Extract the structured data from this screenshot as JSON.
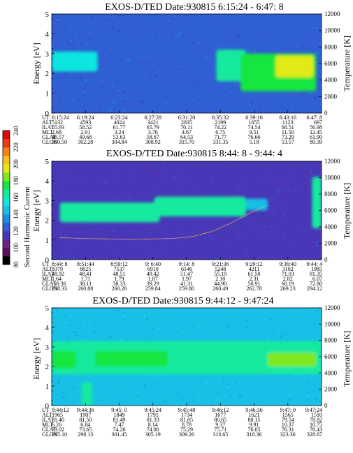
{
  "colorbar": {
    "label": "Second Harmonic Current",
    "ticks": [
      "80",
      "100",
      "120",
      "140",
      "160",
      "180",
      "200",
      "220",
      "240"
    ],
    "colors": [
      "#000000",
      "#5b0f5b",
      "#6a1f8a",
      "#4838b8",
      "#2f5fd2",
      "#1d8ee3",
      "#18bfe6",
      "#10e6e0",
      "#12ea9e",
      "#19e63f",
      "#7fe81b",
      "#e1ea17",
      "#f7c21a",
      "#f97f17",
      "#f23a12",
      "#e00a0a"
    ]
  },
  "chart_data": [
    {
      "type": "heatmap",
      "title": "EXOS-D/TED   Date:930815  6:15:24 - 6:47: 8",
      "ylabel": "Energy [eV]",
      "ylabel_right": "Temperature [K]",
      "ylim": [
        0,
        5
      ],
      "ylim_right": [
        0,
        12000
      ],
      "yticks": [
        "0",
        "1",
        "2",
        "3",
        "4",
        "5"
      ],
      "yticks_right": [
        "0",
        "2000",
        "4000",
        "6000",
        "8000",
        "10000",
        "12000"
      ],
      "row_labels": [
        "UT",
        "ALT",
        "ILAT",
        "MLT",
        "GLAT",
        "GLON"
      ],
      "columns": [
        [
          "6:15:24",
          "5132",
          "55.93",
          "2.68",
          "46.57",
          "300.50"
        ],
        [
          "6:19:24",
          "4593",
          "58.52",
          "2.91",
          "49.68",
          "302.28"
        ],
        [
          "6:23:24",
          "4024",
          "61.77",
          "3.24",
          "53.63",
          "304.84"
        ],
        [
          "6:27:28",
          "3421",
          "65.79",
          "3.76",
          "58.67",
          "308.92"
        ],
        [
          "6:31:20",
          "2835",
          "70.11",
          "4.67",
          "64.53",
          "315.70"
        ],
        [
          "6:35:32",
          "2199",
          "74.22",
          "6.75",
          "71.77",
          "331.35"
        ],
        [
          "6:39:16",
          "1655",
          "74.54",
          "9.51",
          "76.66",
          "5.18"
        ],
        [
          "6:43:16",
          "1123",
          "68.51",
          "11.50",
          "73.29",
          "53.57"
        ],
        [
          "6:47: 8",
          "697",
          "56.98",
          "12.45",
          "61.90",
          "80.39"
        ]
      ],
      "background_level": 120,
      "bands": [
        {
          "x": [
            0.0,
            0.17
          ],
          "energy": [
            2.1,
            3.1
          ],
          "level": 150
        },
        {
          "x": [
            0.61,
            0.72
          ],
          "energy": [
            1.6,
            3.2
          ],
          "level": 165
        },
        {
          "x": [
            0.7,
            0.98
          ],
          "energy": [
            1.1,
            3.0
          ],
          "level": 175
        },
        {
          "x": [
            0.83,
            0.97
          ],
          "energy": [
            1.8,
            2.9
          ],
          "level": 195
        }
      ]
    },
    {
      "type": "heatmap",
      "title": "EXOS-D/TED   Date:930815  8:44: 8 - 9:44: 4",
      "ylabel": "Energy [eV]",
      "ylabel_right": "Temperature [K]",
      "ylim": [
        0,
        5
      ],
      "ylim_right": [
        0,
        12000
      ],
      "yticks": [
        "0",
        "1",
        "2",
        "3",
        "4",
        "5"
      ],
      "yticks_right": [
        "0",
        "2000",
        "4000",
        "6000",
        "8000",
        "10000",
        "12000"
      ],
      "row_labels": [
        "UT",
        "ALT",
        "ILAT",
        "MLT",
        "GLAT",
        "GLON"
      ],
      "columns": [
        [
          "8:44: 8",
          "8379",
          "48.92",
          "1.64",
          "-56.36",
          "238.33"
        ],
        [
          "8:51:44",
          "8025",
          "48.41",
          "1.71",
          "38.11",
          "260.88"
        ],
        [
          "8:59:12",
          "7537",
          "48.51",
          "1.79",
          "38.33",
          "260.26"
        ],
        [
          "9: 6:40",
          "6910",
          "49.42",
          "1.87",
          "39.29",
          "259.84"
        ],
        [
          "9:14: 8",
          "6146",
          "51.47",
          "1.97",
          "41.31",
          "259.80"
        ],
        [
          "9:21:36",
          "5248",
          "55.19",
          "2.10",
          "44.90",
          "260.49"
        ],
        [
          "9:29:12",
          "4211",
          "61.50",
          "2.31",
          "50.91",
          "262.78"
        ],
        [
          "9:36:40",
          "3102",
          "71.03",
          "2.82",
          "60.19",
          "269.23"
        ],
        [
          "9:44: 4",
          "1985",
          "81.35",
          "6.07",
          "72.80",
          "294.12"
        ]
      ],
      "background_level": 112,
      "bands": [
        {
          "x": [
            0.03,
            0.4
          ],
          "energy": [
            1.9,
            2.9
          ],
          "level": 160
        },
        {
          "x": [
            0.38,
            0.72
          ],
          "energy": [
            2.2,
            3.2
          ],
          "level": 162
        },
        {
          "x": [
            0.72,
            0.8
          ],
          "energy": [
            2.5,
            3.1
          ],
          "level": 140
        },
        {
          "x": [
            0.965,
            1.0
          ],
          "energy": [
            1.6,
            4.2
          ],
          "level": 165
        }
      ],
      "temperature_trace_k": [
        2700,
        2600,
        2550,
        2500,
        2480,
        2520,
        2600,
        2800,
        3400,
        4400,
        5600,
        6700
      ]
    },
    {
      "type": "heatmap",
      "title": "EXOS-D/TED   Date:930815  9:44:12 - 9:47:24",
      "ylabel": "Energy [eV]",
      "ylabel_right": "Temperature [K]",
      "ylim": [
        0,
        5
      ],
      "ylim_right": [
        0,
        12000
      ],
      "yticks": [
        "0",
        "1",
        "2",
        "3",
        "4",
        "5"
      ],
      "yticks_right": [
        "0",
        "2000",
        "4000",
        "6000",
        "8000",
        "10000",
        "12000"
      ],
      "row_labels": [
        "UT",
        "ALT",
        "ILAT",
        "MLT",
        "GLAT",
        "GLON"
      ],
      "columns": [
        [
          "9:44:12",
          "1965",
          "81.40",
          "6.26",
          "73.02",
          "295.10"
        ],
        [
          "9:44:36",
          "1907",
          "81.50",
          "6.84",
          "73.65",
          "298.13"
        ],
        [
          "9:45: 0",
          "1849",
          "81.49",
          "7.47",
          "74.26",
          "301.45"
        ],
        [
          "9:45:24",
          "1791",
          "81.33",
          "8.14",
          "74.80",
          "305.19"
        ],
        [
          "9:45:48",
          "1734",
          "81.05",
          "8.78",
          "75.29",
          "309.26"
        ],
        [
          "9:46:12",
          "1677",
          "80.65",
          "9.37",
          "75.71",
          "313.65"
        ],
        [
          "9:46:36",
          "1621",
          "80.15",
          "9.91",
          "76.05",
          "318.36"
        ],
        [
          "9:47: 0",
          "1565",
          "79.54",
          "10.37",
          "76.31",
          "323.36"
        ],
        [
          "9:47:24",
          "1510",
          "78.82",
          "10.75",
          "76.43",
          "328.67"
        ]
      ],
      "background_level": 140,
      "bands": [
        {
          "x": [
            0.0,
            1.0
          ],
          "energy": [
            1.6,
            3.3
          ],
          "level": 160
        },
        {
          "x": [
            0.0,
            0.09
          ],
          "energy": [
            1.9,
            2.8
          ],
          "level": 170
        },
        {
          "x": [
            0.16,
            0.43
          ],
          "energy": [
            2.0,
            2.8
          ],
          "level": 172
        },
        {
          "x": [
            0.52,
            0.68
          ],
          "energy": [
            2.1,
            2.8
          ],
          "level": 168
        },
        {
          "x": [
            0.8,
            0.98
          ],
          "energy": [
            2.0,
            2.7
          ],
          "level": 180
        },
        {
          "x": [
            0.11,
            0.15
          ],
          "energy": [
            0.0,
            1.2
          ],
          "level": 165
        }
      ]
    }
  ]
}
